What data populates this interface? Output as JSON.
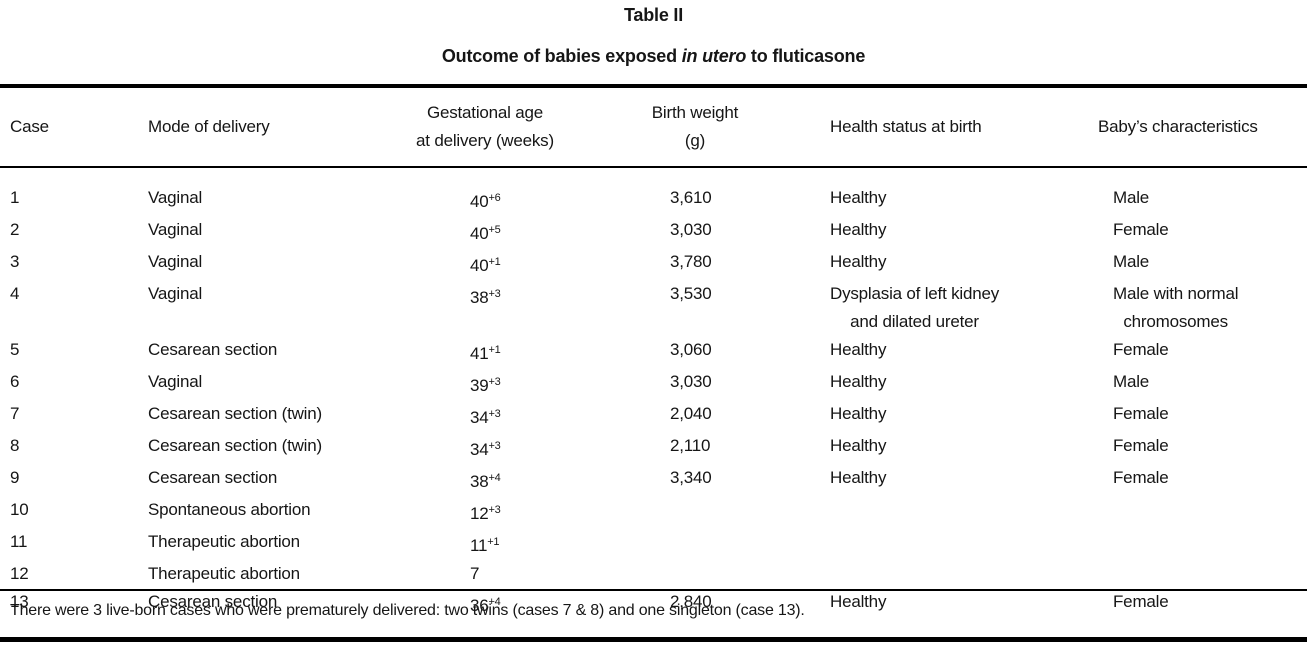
{
  "title": "Table II",
  "subtitle": {
    "prefix": "Outcome of babies exposed ",
    "italic": "in utero",
    "suffix": " to fluticasone"
  },
  "table": {
    "columns": [
      {
        "id": "case",
        "lines": [
          "Case"
        ]
      },
      {
        "id": "mode-of-delivery",
        "lines": [
          "Mode of delivery"
        ]
      },
      {
        "id": "gestational-age",
        "lines": [
          "Gestational age",
          "at delivery (weeks)"
        ]
      },
      {
        "id": "birth-weight",
        "lines": [
          "Birth weight",
          "(g)"
        ]
      },
      {
        "id": "health-status",
        "lines": [
          "Health status at birth"
        ]
      },
      {
        "id": "baby-characteristics",
        "lines": [
          "Baby’s characteristics"
        ]
      }
    ],
    "rows": [
      {
        "case": "1",
        "mode": "Vaginal",
        "gest_weeks": "40",
        "gest_days": "+6",
        "weight": "3,610",
        "health": [
          "Healthy"
        ],
        "baby": [
          "Male"
        ]
      },
      {
        "case": "2",
        "mode": "Vaginal",
        "gest_weeks": "40",
        "gest_days": "+5",
        "weight": "3,030",
        "health": [
          "Healthy"
        ],
        "baby": [
          "Female"
        ]
      },
      {
        "case": "3",
        "mode": "Vaginal",
        "gest_weeks": "40",
        "gest_days": "+1",
        "weight": "3,780",
        "health": [
          "Healthy"
        ],
        "baby": [
          "Male"
        ]
      },
      {
        "case": "4",
        "mode": "Vaginal",
        "gest_weeks": "38",
        "gest_days": "+3",
        "weight": "3,530",
        "health": [
          "Dysplasia of left kidney",
          "and dilated ureter"
        ],
        "baby": [
          "Male with normal",
          "chromosomes"
        ]
      },
      {
        "case": "5",
        "mode": "Cesarean section",
        "gest_weeks": "41",
        "gest_days": "+1",
        "weight": "3,060",
        "health": [
          "Healthy"
        ],
        "baby": [
          "Female"
        ]
      },
      {
        "case": "6",
        "mode": "Vaginal",
        "gest_weeks": "39",
        "gest_days": "+3",
        "weight": "3,030",
        "health": [
          "Healthy"
        ],
        "baby": [
          "Male"
        ]
      },
      {
        "case": "7",
        "mode": "Cesarean section (twin)",
        "gest_weeks": "34",
        "gest_days": "+3",
        "weight": "2,040",
        "health": [
          "Healthy"
        ],
        "baby": [
          "Female"
        ]
      },
      {
        "case": "8",
        "mode": "Cesarean section (twin)",
        "gest_weeks": "34",
        "gest_days": "+3",
        "weight": "2,110",
        "health": [
          "Healthy"
        ],
        "baby": [
          "Female"
        ]
      },
      {
        "case": "9",
        "mode": "Cesarean section",
        "gest_weeks": "38",
        "gest_days": "+4",
        "weight": "3,340",
        "health": [
          "Healthy"
        ],
        "baby": [
          "Female"
        ]
      },
      {
        "case": "10",
        "mode": "Spontaneous abortion",
        "gest_weeks": "12",
        "gest_days": "+3",
        "weight": "",
        "health": [],
        "baby": []
      },
      {
        "case": "11",
        "mode": "Therapeutic abortion",
        "gest_weeks": "11",
        "gest_days": "+1",
        "weight": "",
        "health": [],
        "baby": []
      },
      {
        "case": "12",
        "mode": "Therapeutic abortion",
        "gest_weeks": "7",
        "gest_days": "",
        "weight": "",
        "health": [],
        "baby": []
      },
      {
        "case": "13",
        "mode": "Cesarean section",
        "gest_weeks": "36",
        "gest_days": "+4",
        "weight": "2,840",
        "health": [
          "Healthy"
        ],
        "baby": [
          "Female"
        ]
      }
    ]
  },
  "footnote": "There were 3 live-born cases who were prematurely delivered: two twins (cases 7 & 8) and one singleton (case 13)."
}
